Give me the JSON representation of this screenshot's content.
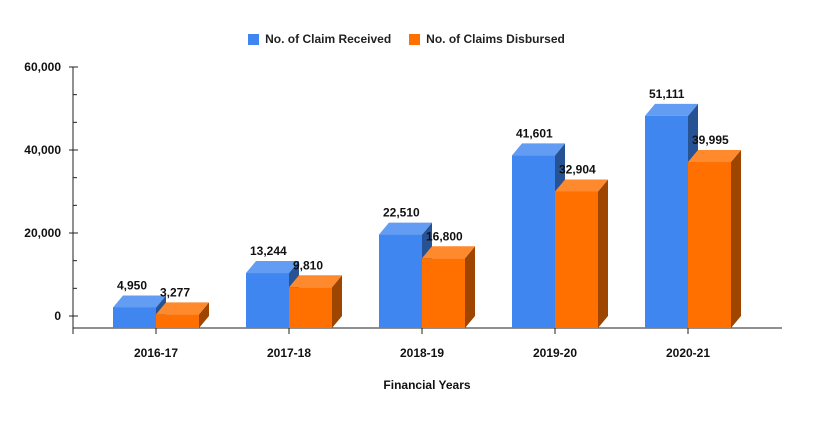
{
  "chart_data": {
    "type": "bar",
    "categories": [
      "2016-17",
      "2017-18",
      "2018-19",
      "2019-20",
      "2020-21"
    ],
    "series": [
      {
        "name": "No. of Claim Received",
        "values": [
          4950,
          13244,
          22510,
          41601,
          51111
        ],
        "labels": [
          "4,950",
          "13,244",
          "22,510",
          "41,601",
          "51,111"
        ],
        "color": "#3f86f0"
      },
      {
        "name": "No. of Claims Disbursed",
        "values": [
          3277,
          9810,
          16800,
          32904,
          39995
        ],
        "labels": [
          "3,277",
          "9,810",
          "16,800",
          "32,904",
          "39,995"
        ],
        "color": "#ff7000"
      }
    ],
    "xlabel": "Financial Years",
    "ylabel": "",
    "ylim": [
      0,
      60000
    ],
    "yticks": [
      0,
      20000,
      40000,
      60000
    ],
    "ytick_labels": [
      "0",
      "20,000",
      "40,000",
      "60,000"
    ],
    "legend_position": "top-center",
    "grid": false,
    "style": "3d-bars"
  }
}
